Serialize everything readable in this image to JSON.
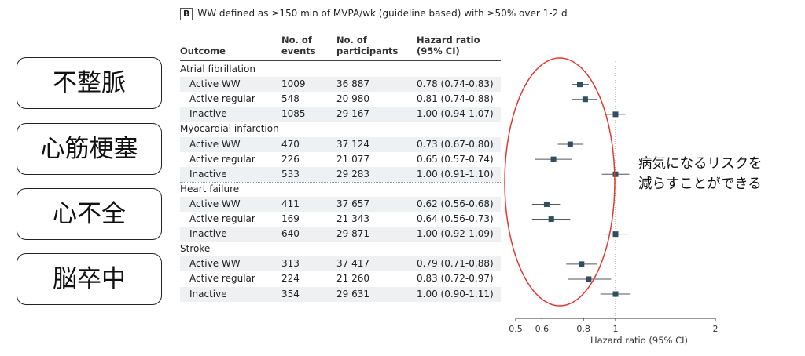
{
  "panel": {
    "letter": "B",
    "title": "WW defined as ≥150 min of MVPA/wk (guideline based) with ≥50% over 1-2 d"
  },
  "columns": {
    "outcome": "Outcome",
    "events": [
      "No. of",
      "events"
    ],
    "participants": [
      "No. of",
      "participants"
    ],
    "hr": [
      "Hazard ratio",
      "(95% CI)"
    ]
  },
  "left_labels": [
    "不整脈",
    "心筋梗塞",
    "心不全",
    "脳卒中"
  ],
  "annotation": [
    "病気になるリスクを",
    "減らすことができる"
  ],
  "colors": {
    "marker": "#2f4f5f",
    "ci": "#555555",
    "ellipse": "#e03a2f",
    "shade": "#eef0f2"
  },
  "chart_data": {
    "type": "forest",
    "xlabel": "Hazard ratio (95% CI)",
    "xscale": "log",
    "xlim": [
      0.5,
      2
    ],
    "xticks": [
      0.5,
      0.6,
      0.8,
      1,
      2
    ],
    "reference_line": 1,
    "groups": [
      {
        "outcome": "Atrial fibrillation",
        "rows": [
          {
            "label": "Active WW",
            "events": "1009",
            "participants": "36 887",
            "hr": 0.78,
            "lo": 0.74,
            "hi": 0.83,
            "hr_text": "0.78 (0.74-0.83)"
          },
          {
            "label": "Active regular",
            "events": "548",
            "participants": "20 980",
            "hr": 0.81,
            "lo": 0.74,
            "hi": 0.88,
            "hr_text": "0.81 (0.74-0.88)"
          },
          {
            "label": "Inactive",
            "events": "1085",
            "participants": "29 167",
            "hr": 1.0,
            "lo": 0.94,
            "hi": 1.07,
            "hr_text": "1.00 (0.94-1.07)"
          }
        ]
      },
      {
        "outcome": "Myocardial infarction",
        "rows": [
          {
            "label": "Active WW",
            "events": "470",
            "participants": "37 124",
            "hr": 0.73,
            "lo": 0.67,
            "hi": 0.8,
            "hr_text": "0.73 (0.67-0.80)"
          },
          {
            "label": "Active regular",
            "events": "226",
            "participants": "21 077",
            "hr": 0.65,
            "lo": 0.57,
            "hi": 0.74,
            "hr_text": "0.65 (0.57-0.74)"
          },
          {
            "label": "Inactive",
            "events": "533",
            "participants": "29 283",
            "hr": 1.0,
            "lo": 0.91,
            "hi": 1.1,
            "hr_text": "1.00 (0.91-1.10)"
          }
        ]
      },
      {
        "outcome": "Heart failure",
        "rows": [
          {
            "label": "Active WW",
            "events": "411",
            "participants": "37 657",
            "hr": 0.62,
            "lo": 0.56,
            "hi": 0.68,
            "hr_text": "0.62 (0.56-0.68)"
          },
          {
            "label": "Active regular",
            "events": "169",
            "participants": "21 343",
            "hr": 0.64,
            "lo": 0.56,
            "hi": 0.73,
            "hr_text": "0.64 (0.56-0.73)"
          },
          {
            "label": "Inactive",
            "events": "640",
            "participants": "29 871",
            "hr": 1.0,
            "lo": 0.92,
            "hi": 1.09,
            "hr_text": "1.00 (0.92-1.09)"
          }
        ]
      },
      {
        "outcome": "Stroke",
        "rows": [
          {
            "label": "Active WW",
            "events": "313",
            "participants": "37 417",
            "hr": 0.79,
            "lo": 0.71,
            "hi": 0.88,
            "hr_text": "0.79 (0.71-0.88)"
          },
          {
            "label": "Active regular",
            "events": "224",
            "participants": "21 260",
            "hr": 0.83,
            "lo": 0.72,
            "hi": 0.97,
            "hr_text": "0.83 (0.72-0.97)"
          },
          {
            "label": "Inactive",
            "events": "354",
            "participants": "29 631",
            "hr": 1.0,
            "lo": 0.9,
            "hi": 1.11,
            "hr_text": "1.00 (0.90-1.11)"
          }
        ]
      }
    ]
  }
}
